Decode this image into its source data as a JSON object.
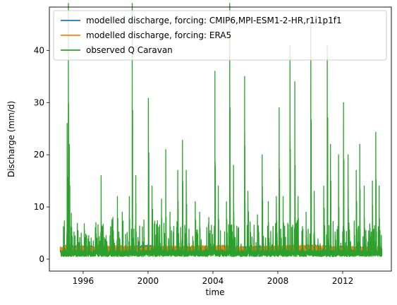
{
  "chart_data": {
    "type": "line",
    "title": "",
    "xlabel": "time",
    "ylabel": "Discharge (mm/d)",
    "xlim": [
      "1993-12-01",
      "2015-01-01"
    ],
    "ylim": [
      -2.3,
      48.3
    ],
    "x_ticks": [
      "1996",
      "2000",
      "2004",
      "2008",
      "2012"
    ],
    "y_ticks": [
      0,
      10,
      20,
      30,
      40
    ],
    "grid": false,
    "legend_position": "top-right",
    "series": [
      {
        "name": "modelled discharge, forcing: CMIP6,MPI-ESM1-2-HR,r1i1p1f1",
        "color": "#1f77b4",
        "x": [
          "1994-08-01",
          "1995-01-01",
          "1996-01-01",
          "1998-01-01",
          "2000-01-01",
          "2002-01-01",
          "2004-01-01",
          "2006-01-01",
          "2008-01-01",
          "2010-01-01",
          "2012-01-01",
          "2014-06-01"
        ],
        "values": [
          0.8,
          1.5,
          1.2,
          1.0,
          1.3,
          0.9,
          1.2,
          1.1,
          1.0,
          1.3,
          1.1,
          1.0
        ]
      },
      {
        "name": "modelled discharge, forcing: ERA5",
        "color": "#ff7f0e",
        "x": [
          "1994-08-01",
          "1995-01-01",
          "1996-01-01",
          "1998-01-01",
          "2000-01-01",
          "2002-01-01",
          "2004-01-01",
          "2006-01-01",
          "2008-01-01",
          "2010-01-01",
          "2012-01-01",
          "2014-06-01"
        ],
        "values": [
          0.9,
          1.4,
          1.1,
          1.2,
          1.0,
          1.1,
          1.3,
          1.0,
          1.2,
          1.4,
          1.0,
          0.9
        ]
      },
      {
        "name": "observed Q Caravan",
        "color": "#2ca02c",
        "peaks": [
          [
            "1994-10-15",
            6.2
          ],
          [
            "1995-01-05",
            26.0
          ],
          [
            "1995-02-02",
            49.0
          ],
          [
            "1995-02-25",
            22.0
          ],
          [
            "1995-04-10",
            8.8
          ],
          [
            "1995-11-20",
            5.0
          ],
          [
            "1996-03-01",
            4.8
          ],
          [
            "1996-10-15",
            7.0
          ],
          [
            "1997-02-10",
            16.0
          ],
          [
            "1997-06-01",
            4.5
          ],
          [
            "1997-11-01",
            8.0
          ],
          [
            "1998-02-10",
            12.0
          ],
          [
            "1998-06-01",
            9.0
          ],
          [
            "1998-11-05",
            12.0
          ],
          [
            "1999-01-10",
            49.0
          ],
          [
            "1999-04-01",
            16.0
          ],
          [
            "1999-10-01",
            7.5
          ],
          [
            "2000-01-10",
            30.8
          ],
          [
            "2000-04-01",
            14.0
          ],
          [
            "2000-11-01",
            11.5
          ],
          [
            "2001-02-05",
            21.0
          ],
          [
            "2001-05-10",
            9.0
          ],
          [
            "2001-11-01",
            17.0
          ],
          [
            "2002-02-15",
            22.8
          ],
          [
            "2002-05-10",
            17.0
          ],
          [
            "2002-12-01",
            11.0
          ],
          [
            "2003-03-10",
            9.0
          ],
          [
            "2003-10-01",
            8.0
          ],
          [
            "2004-02-15",
            36.0
          ],
          [
            "2004-05-01",
            14.0
          ],
          [
            "2004-11-01",
            11.0
          ],
          [
            "2005-01-15",
            49.0
          ],
          [
            "2005-04-10",
            18.0
          ],
          [
            "2005-12-15",
            35.0
          ],
          [
            "2006-03-01",
            13.0
          ],
          [
            "2006-10-01",
            8.5
          ],
          [
            "2007-01-15",
            20.0
          ],
          [
            "2007-06-01",
            11.0
          ],
          [
            "2007-12-01",
            12.0
          ],
          [
            "2008-02-01",
            29.0
          ],
          [
            "2008-05-01",
            12.0
          ],
          [
            "2008-10-01",
            41.0
          ],
          [
            "2009-01-20",
            34.0
          ],
          [
            "2009-04-01",
            12.0
          ],
          [
            "2009-10-01",
            9.0
          ],
          [
            "2010-01-15",
            45.5
          ],
          [
            "2010-04-01",
            13.0
          ],
          [
            "2010-11-01",
            14.0
          ],
          [
            "2011-01-20",
            41.0
          ],
          [
            "2011-04-01",
            22.0
          ],
          [
            "2011-10-01",
            20.0
          ],
          [
            "2012-01-20",
            30.0
          ],
          [
            "2012-05-01",
            20.0
          ],
          [
            "2012-11-01",
            17.0
          ],
          [
            "2013-01-20",
            22.0
          ],
          [
            "2013-05-01",
            14.0
          ],
          [
            "2013-11-01",
            15.0
          ],
          [
            "2014-01-15",
            24.3
          ],
          [
            "2014-04-01",
            14.0
          ],
          [
            "2014-06-01",
            2.0
          ]
        ]
      }
    ]
  }
}
